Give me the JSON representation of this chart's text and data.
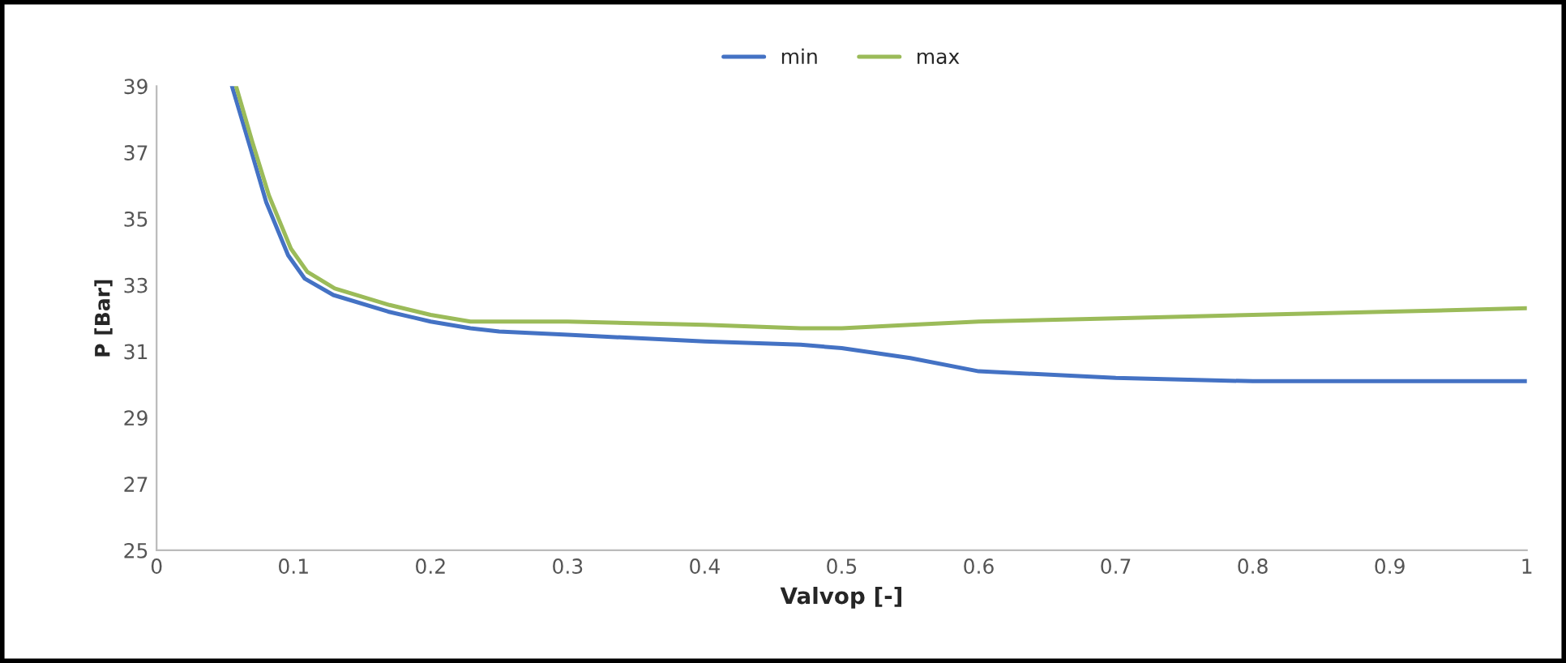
{
  "chart_data": {
    "type": "line",
    "xlabel": "Valvop [-]",
    "ylabel": "P [Bar]",
    "xlim": [
      0,
      1
    ],
    "xticks": [
      0,
      0.1,
      0.2,
      0.3,
      0.4,
      0.5,
      0.6,
      0.7,
      0.8,
      0.9,
      1
    ],
    "ylim": [
      25,
      39
    ],
    "yticks": [
      25,
      27,
      29,
      31,
      33,
      35,
      37,
      39
    ],
    "grid": false,
    "legend": "top",
    "marker": "none",
    "line_style": "solid",
    "series": [
      {
        "name": "min",
        "color": "#4472c4",
        "x": [
          0.055,
          0.068,
          0.08,
          0.096,
          0.108,
          0.129,
          0.169,
          0.2,
          0.229,
          0.25,
          0.3,
          0.4,
          0.47,
          0.5,
          0.55,
          0.6,
          0.7,
          0.8,
          0.9,
          1
        ],
        "values": [
          39,
          37.2,
          35.5,
          33.9,
          33.2,
          32.7,
          32.2,
          31.9,
          31.7,
          31.6,
          31.5,
          31.3,
          31.2,
          31.1,
          30.8,
          30.4,
          30.2,
          30.1,
          30.1,
          30.1
        ]
      },
      {
        "name": "max",
        "color": "#9bbb59",
        "x": [
          0.058,
          0.07,
          0.082,
          0.098,
          0.11,
          0.13,
          0.17,
          0.2,
          0.229,
          0.25,
          0.3,
          0.4,
          0.47,
          0.5,
          0.55,
          0.6,
          0.7,
          0.8,
          0.9,
          1
        ],
        "values": [
          39,
          37.3,
          35.7,
          34.1,
          33.4,
          32.9,
          32.4,
          32.1,
          31.9,
          31.9,
          31.9,
          31.8,
          31.7,
          31.7,
          31.8,
          31.9,
          32.0,
          32.1,
          32.2,
          32.3
        ]
      }
    ]
  }
}
